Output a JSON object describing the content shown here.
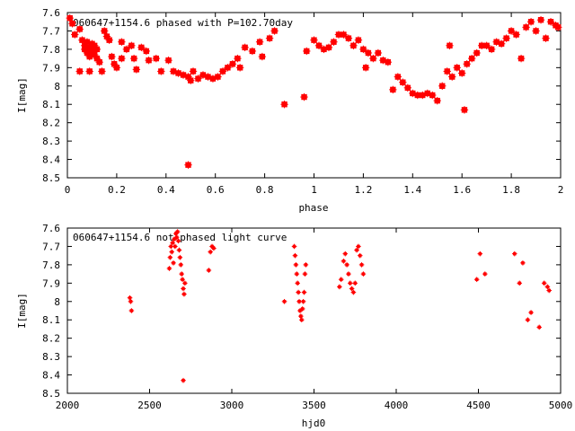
{
  "chart_data": [
    {
      "type": "scatter",
      "title": "060647+1154.6 phased with P=102.70day",
      "xlabel": "phase",
      "ylabel": "I[mag]",
      "xlim": [
        0,
        2
      ],
      "ylim": [
        7.6,
        8.5
      ],
      "y_inverted": true,
      "x_ticks": [
        "0",
        "0.2",
        "0.4",
        "0.6",
        "0.8",
        "1",
        "1.2",
        "1.4",
        "1.6",
        "1.8",
        "2"
      ],
      "y_ticks": [
        "7.6",
        "7.7",
        "7.8",
        "7.9",
        "8",
        "8.1",
        "8.2",
        "8.3",
        "8.4",
        "8.5"
      ],
      "color": "#ff0000",
      "series": [
        {
          "points": [
            [
              0.01,
              7.63
            ],
            [
              0.02,
              7.66
            ],
            [
              0.03,
              7.72
            ],
            [
              0.05,
              7.69
            ],
            [
              0.06,
              7.75
            ],
            [
              0.07,
              7.78
            ],
            [
              0.07,
              7.8
            ],
            [
              0.08,
              7.82
            ],
            [
              0.08,
              7.76
            ],
            [
              0.09,
              7.84
            ],
            [
              0.09,
              7.79
            ],
            [
              0.1,
              7.77
            ],
            [
              0.1,
              7.81
            ],
            [
              0.11,
              7.83
            ],
            [
              0.11,
              7.78
            ],
            [
              0.12,
              7.8
            ],
            [
              0.12,
              7.85
            ],
            [
              0.09,
              7.92
            ],
            [
              0.05,
              7.92
            ],
            [
              0.13,
              7.87
            ],
            [
              0.14,
              7.92
            ],
            [
              0.15,
              7.7
            ],
            [
              0.16,
              7.73
            ],
            [
              0.17,
              7.75
            ],
            [
              0.18,
              7.84
            ],
            [
              0.19,
              7.88
            ],
            [
              0.2,
              7.9
            ],
            [
              0.22,
              7.76
            ],
            [
              0.22,
              7.85
            ],
            [
              0.24,
              7.8
            ],
            [
              0.26,
              7.78
            ],
            [
              0.27,
              7.85
            ],
            [
              0.28,
              7.91
            ],
            [
              0.3,
              7.79
            ],
            [
              0.32,
              7.81
            ],
            [
              0.33,
              7.86
            ],
            [
              0.36,
              7.85
            ],
            [
              0.38,
              7.92
            ],
            [
              0.41,
              7.86
            ],
            [
              0.43,
              7.92
            ],
            [
              0.45,
              7.93
            ],
            [
              0.47,
              7.94
            ],
            [
              0.49,
              7.95
            ],
            [
              0.5,
              7.97
            ],
            [
              0.51,
              7.92
            ],
            [
              0.53,
              7.96
            ],
            [
              0.55,
              7.94
            ],
            [
              0.57,
              7.95
            ],
            [
              0.59,
              7.96
            ],
            [
              0.61,
              7.95
            ],
            [
              0.63,
              7.92
            ],
            [
              0.65,
              7.9
            ],
            [
              0.67,
              7.88
            ],
            [
              0.69,
              7.85
            ],
            [
              0.7,
              7.9
            ],
            [
              0.72,
              7.79
            ],
            [
              0.75,
              7.81
            ],
            [
              0.78,
              7.76
            ],
            [
              0.79,
              7.84
            ],
            [
              0.82,
              7.74
            ],
            [
              0.84,
              7.7
            ],
            [
              0.49,
              8.43
            ],
            [
              0.88,
              8.1
            ],
            [
              0.96,
              8.06
            ],
            [
              0.97,
              7.81
            ],
            [
              1.0,
              7.75
            ],
            [
              1.02,
              7.78
            ],
            [
              1.04,
              7.8
            ],
            [
              1.06,
              7.79
            ],
            [
              1.08,
              7.76
            ],
            [
              1.1,
              7.72
            ],
            [
              1.12,
              7.72
            ],
            [
              1.14,
              7.74
            ],
            [
              1.16,
              7.78
            ],
            [
              1.18,
              7.75
            ],
            [
              1.2,
              7.8
            ],
            [
              1.21,
              7.9
            ],
            [
              1.22,
              7.82
            ],
            [
              1.24,
              7.85
            ],
            [
              1.26,
              7.82
            ],
            [
              1.28,
              7.86
            ],
            [
              1.3,
              7.87
            ],
            [
              1.32,
              8.02
            ],
            [
              1.34,
              7.95
            ],
            [
              1.36,
              7.98
            ],
            [
              1.38,
              8.01
            ],
            [
              1.4,
              8.04
            ],
            [
              1.42,
              8.05
            ],
            [
              1.44,
              8.05
            ],
            [
              1.46,
              8.04
            ],
            [
              1.48,
              8.05
            ],
            [
              1.5,
              8.08
            ],
            [
              1.52,
              8.0
            ],
            [
              1.54,
              7.92
            ],
            [
              1.55,
              7.78
            ],
            [
              1.56,
              7.95
            ],
            [
              1.58,
              7.9
            ],
            [
              1.6,
              7.93
            ],
            [
              1.61,
              8.13
            ],
            [
              1.62,
              7.88
            ],
            [
              1.64,
              7.85
            ],
            [
              1.66,
              7.82
            ],
            [
              1.68,
              7.78
            ],
            [
              1.7,
              7.78
            ],
            [
              1.72,
              7.8
            ],
            [
              1.74,
              7.76
            ],
            [
              1.76,
              7.77
            ],
            [
              1.78,
              7.74
            ],
            [
              1.8,
              7.7
            ],
            [
              1.82,
              7.72
            ],
            [
              1.84,
              7.85
            ],
            [
              1.86,
              7.68
            ],
            [
              1.88,
              7.65
            ],
            [
              1.9,
              7.7
            ],
            [
              1.92,
              7.64
            ],
            [
              1.94,
              7.74
            ],
            [
              1.96,
              7.65
            ],
            [
              1.98,
              7.67
            ],
            [
              1.99,
              7.68
            ]
          ]
        }
      ]
    },
    {
      "type": "scatter",
      "title": "060647+1154.6 not phased light curve",
      "xlabel": "hjd0",
      "ylabel": "I[mag]",
      "xlim": [
        2000,
        5000
      ],
      "ylim": [
        7.6,
        8.5
      ],
      "y_inverted": true,
      "x_ticks": [
        "2000",
        "2500",
        "3000",
        "3500",
        "4000",
        "4500",
        "5000"
      ],
      "y_ticks": [
        "7.6",
        "7.7",
        "7.8",
        "7.9",
        "8",
        "8.1",
        "8.2",
        "8.3",
        "8.4",
        "8.5"
      ],
      "color": "#ff0000",
      "series": [
        {
          "points": [
            [
              2380,
              7.98
            ],
            [
              2385,
              8.0
            ],
            [
              2390,
              8.05
            ],
            [
              2620,
              7.82
            ],
            [
              2625,
              7.76
            ],
            [
              2630,
              7.7
            ],
            [
              2635,
              7.73
            ],
            [
              2640,
              7.68
            ],
            [
              2645,
              7.79
            ],
            [
              2650,
              7.66
            ],
            [
              2655,
              7.7
            ],
            [
              2660,
              7.63
            ],
            [
              2665,
              7.65
            ],
            [
              2670,
              7.62
            ],
            [
              2675,
              7.67
            ],
            [
              2680,
              7.72
            ],
            [
              2685,
              7.76
            ],
            [
              2690,
              7.8
            ],
            [
              2695,
              7.85
            ],
            [
              2700,
              7.88
            ],
            [
              2705,
              7.93
            ],
            [
              2710,
              7.96
            ],
            [
              2715,
              7.9
            ],
            [
              2705,
              8.43
            ],
            [
              2870,
              7.73
            ],
            [
              2880,
              7.7
            ],
            [
              2890,
              7.71
            ],
            [
              2860,
              7.83
            ],
            [
              3320,
              8.0
            ],
            [
              3380,
              7.7
            ],
            [
              3385,
              7.75
            ],
            [
              3390,
              7.8
            ],
            [
              3395,
              7.85
            ],
            [
              3400,
              7.9
            ],
            [
              3405,
              7.95
            ],
            [
              3410,
              8.0
            ],
            [
              3415,
              8.05
            ],
            [
              3420,
              8.08
            ],
            [
              3425,
              8.1
            ],
            [
              3430,
              8.04
            ],
            [
              3435,
              8.0
            ],
            [
              3440,
              7.95
            ],
            [
              3445,
              7.85
            ],
            [
              3450,
              7.8
            ],
            [
              3655,
              7.92
            ],
            [
              3665,
              7.88
            ],
            [
              3680,
              7.78
            ],
            [
              3690,
              7.74
            ],
            [
              3700,
              7.8
            ],
            [
              3710,
              7.85
            ],
            [
              3720,
              7.9
            ],
            [
              3730,
              7.93
            ],
            [
              3740,
              7.95
            ],
            [
              3750,
              7.9
            ],
            [
              3760,
              7.72
            ],
            [
              3770,
              7.7
            ],
            [
              3780,
              7.75
            ],
            [
              3790,
              7.8
            ],
            [
              3800,
              7.85
            ],
            [
              4490,
              7.88
            ],
            [
              4510,
              7.74
            ],
            [
              4540,
              7.85
            ],
            [
              4720,
              7.74
            ],
            [
              4750,
              7.9
            ],
            [
              4770,
              7.79
            ],
            [
              4800,
              8.1
            ],
            [
              4820,
              8.06
            ],
            [
              4870,
              8.14
            ],
            [
              4900,
              7.9
            ],
            [
              4920,
              7.92
            ],
            [
              4930,
              7.94
            ]
          ]
        }
      ]
    }
  ]
}
